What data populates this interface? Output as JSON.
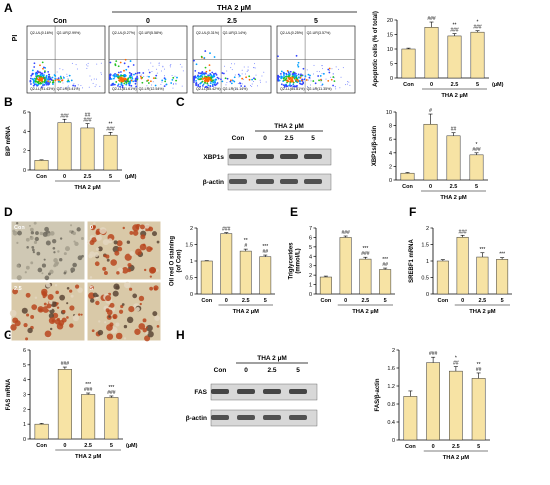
{
  "colors": {
    "bar": "#F7E3A4",
    "bar_stroke": "#333333",
    "axis": "#000000"
  },
  "common": {
    "con": "Con",
    "thai": "THA 2 µM",
    "unit": "(µM)",
    "doses": [
      "0",
      "2.5",
      "5"
    ]
  },
  "flow": {
    "ylabel": "PI",
    "headers": [
      "Con",
      "0",
      "2.5",
      "5"
    ],
    "quad_labels": [
      {
        "ul": "Q2-UL(0.16%)",
        "ur": "Q2-UR(2.99%)",
        "ll": "Q2-LL(91.43%)",
        "lr": "Q2-LR(5.41%)"
      },
      {
        "ul": "Q2-UL(0.27%)",
        "ur": "Q2-UR(5.58%)",
        "ll": "Q2-LL(81.61%)",
        "lr": "Q2-LR(12.54%)"
      },
      {
        "ul": "Q2-UL(0.31%)",
        "ur": "Q2-UR(3.14%)",
        "ll": "Q2-LL(85.42%)",
        "lr": "Q2-LR(11.14%)"
      },
      {
        "ul": "Q2-UL(0.25%)",
        "ur": "Q2-UR(3.57%)",
        "ll": "Q2-LL(84.81%)",
        "lr": "Q2-LR(11.35%)"
      }
    ]
  },
  "blots": {
    "C": {
      "header": [
        "Con",
        "0",
        "2.5",
        "5"
      ],
      "rows": [
        "XBP1s",
        "β-actin"
      ]
    },
    "H": {
      "header": [
        "Con",
        "0",
        "2.5",
        "5"
      ],
      "rows": [
        "FAS",
        "β-actin"
      ]
    }
  },
  "panel_letters": [
    "A",
    "B",
    "C",
    "D",
    "E",
    "F",
    "G",
    "H"
  ],
  "chart_data": [
    {
      "id": "A",
      "type": "bar",
      "ylabel": "Apoptotic cells (% of total)",
      "ylim": [
        0,
        20
      ],
      "yticks": [
        0,
        5,
        10,
        15,
        20
      ],
      "categories": [
        "Con",
        "0",
        "2.5",
        "5"
      ],
      "values": [
        10,
        17.5,
        14.5,
        15.8
      ],
      "errors": [
        0.3,
        1.8,
        0.8,
        0.5
      ],
      "annotations": [
        "",
        "###",
        "**\n###",
        "*\n###"
      ]
    },
    {
      "id": "B",
      "type": "bar",
      "ylabel": "BiP mRNA",
      "ylim": [
        0,
        6
      ],
      "yticks": [
        0,
        2,
        4,
        6
      ],
      "categories": [
        "Con",
        "0",
        "2.5",
        "5"
      ],
      "values": [
        1,
        4.9,
        4.35,
        3.6
      ],
      "errors": [
        0.05,
        0.35,
        0.45,
        0.3
      ],
      "annotations": [
        "",
        "###",
        "##\n###",
        "**\n###"
      ]
    },
    {
      "id": "C",
      "type": "bar",
      "ylabel": "XBP1s/β-actin",
      "ylim": [
        0,
        10
      ],
      "yticks": [
        0,
        2,
        4,
        6,
        8,
        10
      ],
      "categories": [
        "Con",
        "0",
        "2.5",
        "5"
      ],
      "values": [
        1,
        8.2,
        6.5,
        3.7
      ],
      "errors": [
        0.1,
        1.5,
        0.45,
        0.3
      ],
      "annotations": [
        "",
        "#",
        "##",
        "*\n###"
      ]
    },
    {
      "id": "D",
      "type": "bar",
      "ylabel": "Oil red O staining\n(of Con)",
      "ylim": [
        0,
        2
      ],
      "yticks": [
        0,
        0.5,
        1,
        1.5,
        2
      ],
      "categories": [
        "Con",
        "0",
        "2.5",
        "5"
      ],
      "values": [
        1,
        1.83,
        1.3,
        1.13
      ],
      "errors": [
        0.01,
        0.03,
        0.06,
        0.05
      ],
      "annotations": [
        "",
        "###",
        "**\n#",
        "***\n##"
      ]
    },
    {
      "id": "E",
      "type": "bar",
      "ylabel": "Triglycerides\n(mmol/L)",
      "ylim": [
        0,
        7
      ],
      "yticks": [
        0,
        1,
        2,
        3,
        4,
        5,
        6,
        7
      ],
      "categories": [
        "Con",
        "0",
        "2.5",
        "5"
      ],
      "values": [
        1.8,
        6.0,
        3.7,
        2.6
      ],
      "errors": [
        0.1,
        0.15,
        0.2,
        0.15
      ],
      "annotations": [
        "",
        "###",
        "***\n###",
        "***\n##"
      ]
    },
    {
      "id": "F",
      "type": "bar",
      "ylabel": "SREBF1 mRNA",
      "ylim": [
        0,
        2
      ],
      "yticks": [
        0,
        0.5,
        1,
        1.5,
        2
      ],
      "categories": [
        "Con",
        "0",
        "2.5",
        "5"
      ],
      "values": [
        1,
        1.72,
        1.12,
        1.05
      ],
      "errors": [
        0.04,
        0.06,
        0.13,
        0.05
      ],
      "annotations": [
        "",
        "###",
        "***",
        "***"
      ]
    },
    {
      "id": "G",
      "type": "bar",
      "ylabel": "FAS mRNA",
      "ylim": [
        0,
        6
      ],
      "yticks": [
        0,
        1,
        2,
        3,
        4,
        5,
        6
      ],
      "categories": [
        "Con",
        "0",
        "2.5",
        "5"
      ],
      "values": [
        1,
        4.7,
        3.0,
        2.8
      ],
      "errors": [
        0.05,
        0.15,
        0.1,
        0.1
      ],
      "annotations": [
        "",
        "###",
        "***\n###",
        "***\n###"
      ]
    },
    {
      "id": "H",
      "type": "bar",
      "ylabel": "FAS/β-actin",
      "ylim": [
        0,
        2
      ],
      "yticks": [
        0,
        0.4,
        0.8,
        1.2,
        1.6,
        2
      ],
      "categories": [
        "Con",
        "0",
        "2.5",
        "5"
      ],
      "values": [
        0.97,
        1.72,
        1.53,
        1.37
      ],
      "errors": [
        0.12,
        0.12,
        0.1,
        0.12
      ],
      "annotations": [
        "",
        "###",
        "*\n##",
        "**\n##"
      ]
    }
  ]
}
